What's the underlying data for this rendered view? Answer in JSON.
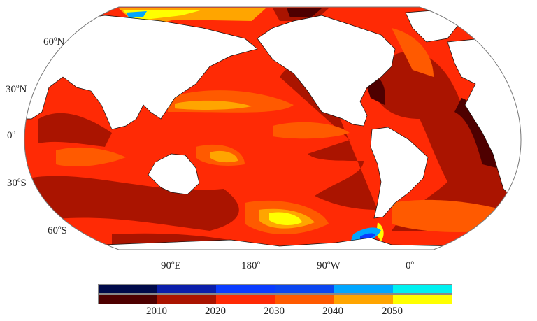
{
  "map": {
    "projection": "Robinson",
    "lat_labels": [
      {
        "deg": "60",
        "hemi": "N"
      },
      {
        "deg": "30",
        "hemi": "N"
      },
      {
        "deg": "0",
        "hemi": ""
      },
      {
        "deg": "30",
        "hemi": "S"
      },
      {
        "deg": "60",
        "hemi": "S"
      }
    ],
    "lon_labels": [
      {
        "deg": "90",
        "hemi": "E"
      },
      {
        "deg": "180",
        "hemi": ""
      },
      {
        "deg": "90",
        "hemi": "W"
      },
      {
        "deg": "0",
        "hemi": ""
      }
    ],
    "ocean_base_color": "#ff2a05",
    "land_color": "#ffffff"
  },
  "colorbar": {
    "top_colors": [
      "#000a4a",
      "#0a1eaa",
      "#0a3cff",
      "#0a46f0",
      "#00a6ff",
      "#00f0f0"
    ],
    "bottom_colors": [
      "#4e0000",
      "#aa1400",
      "#ff2a05",
      "#ff5a00",
      "#ffa500",
      "#ffff00"
    ],
    "tick_labels": [
      "2010",
      "2020",
      "2030",
      "2040",
      "2050"
    ]
  }
}
